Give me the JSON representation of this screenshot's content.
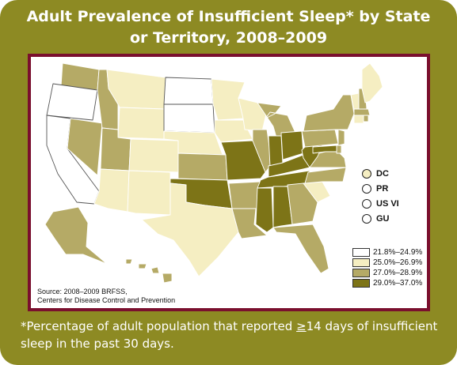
{
  "title_line1": "Adult Prevalence of Insufficient Sleep* by State",
  "title_line2": "or Territory, 2008–2009",
  "colors": {
    "frame": "#8d8a23",
    "panel_border": "#7a0f2e",
    "cat1": "#ffffff",
    "cat2": "#f5eec2",
    "cat3": "#b5aa66",
    "cat4": "#7d7417"
  },
  "territories": [
    {
      "label": "DC",
      "category": "25.0%–26.9%"
    },
    {
      "label": "PR",
      "category": "21.8%–24.9%"
    },
    {
      "label": "US VI",
      "category": "21.8%–24.9%"
    },
    {
      "label": "GU",
      "category": "21.8%–24.9%"
    }
  ],
  "legend": [
    {
      "label": "21.8%–24.9%"
    },
    {
      "label": "25.0%–26.9%"
    },
    {
      "label": "27.0%–28.9%"
    },
    {
      "label": "29.0%–37.0%"
    }
  ],
  "source_line1": "Source: 2008–2009 BRFSS,",
  "source_line2": "Centers for Disease Control and Prevention",
  "footnote_pre": "*Percentage of adult population that reported ",
  "footnote_ge": "≥",
  "footnote_post": "14 days of insufficient sleep in the past 30 days.",
  "states": {
    "WA": "27.0%–28.9%",
    "OR": "21.8%–24.9%",
    "CA": "21.8%–24.9%",
    "NV": "27.0%–28.9%",
    "ID": "27.0%–28.9%",
    "MT": "25.0%–26.9%",
    "WY": "25.0%–26.9%",
    "UT": "27.0%–28.9%",
    "AZ": "25.0%–26.9%",
    "CO": "25.0%–26.9%",
    "NM": "25.0%–26.9%",
    "ND": "21.8%–24.9%",
    "SD": "21.8%–24.9%",
    "NE": "25.0%–26.9%",
    "KS": "27.0%–28.9%",
    "OK": "29.0%–37.0%",
    "TX": "25.0%–26.9%",
    "MN": "25.0%–26.9%",
    "IA": "25.0%–26.9%",
    "MO": "29.0%–37.0%",
    "AR": "27.0%–28.9%",
    "LA": "27.0%–28.9%",
    "WI": "25.0%–26.9%",
    "IL": "27.0%–28.9%",
    "MI": "27.0%–28.9%",
    "IN": "29.0%–37.0%",
    "OH": "29.0%–37.0%",
    "KY": "29.0%–37.0%",
    "TN": "29.0%–37.0%",
    "MS": "29.0%–37.0%",
    "AL": "29.0%–37.0%",
    "GA": "27.0%–28.9%",
    "FL": "27.0%–28.9%",
    "SC": "25.0%–26.9%",
    "NC": "27.0%–28.9%",
    "VA": "27.0%–28.9%",
    "WV": "29.0%–37.0%",
    "PA": "27.0%–28.9%",
    "NY": "27.0%–28.9%",
    "VT": "25.0%–26.9%",
    "NH": "27.0%–28.9%",
    "ME": "25.0%–26.9%",
    "MA": "27.0%–28.9%",
    "CT": "25.0%–26.9%",
    "RI": "27.0%–28.9%",
    "NJ": "27.0%–28.9%",
    "DE": "27.0%–28.9%",
    "MD": "29.0%–37.0%",
    "AK": "27.0%–28.9%",
    "HI": "27.0%–28.9%"
  }
}
